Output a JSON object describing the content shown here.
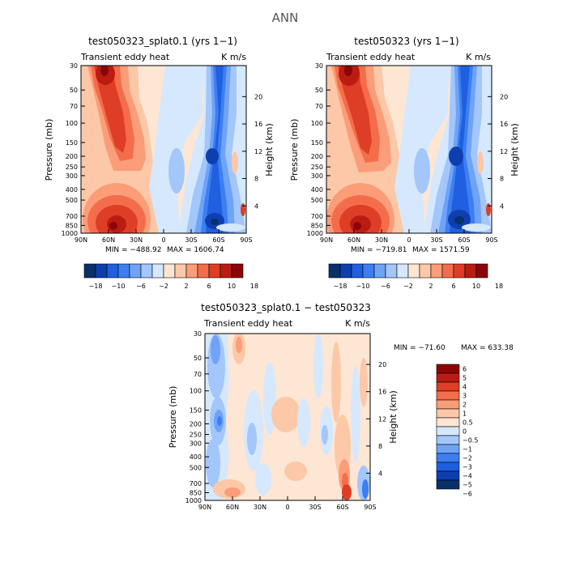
{
  "figure_title": "ANN",
  "colorbar_colors": [
    "#08306b",
    "#0d3fb0",
    "#1f5fe0",
    "#3d7ff2",
    "#6ea3f7",
    "#a3c6fb",
    "#d6e8fd",
    "#fde6d4",
    "#fcc8a7",
    "#fb9d78",
    "#f46d4b",
    "#df3e26",
    "#bb1c12",
    "#8b0508"
  ],
  "chart_data": [
    {
      "type": "heatmap",
      "title": "test050323_splat0.1 (yrs 1−1)",
      "variable": "Transient eddy heat",
      "units": "K m/s",
      "xlabel": "",
      "ylabel": "Pressure (mb)",
      "y2label": "Height (km)",
      "x_ticks": [
        "90N",
        "60N",
        "30N",
        "0",
        "30S",
        "60S",
        "90S"
      ],
      "y_ticks": [
        "30",
        "50",
        "70",
        "100",
        "150",
        "200",
        "250",
        "300",
        "400",
        "500",
        "700",
        "850",
        "1000"
      ],
      "y2_ticks": [
        "20",
        "16",
        "12",
        "8",
        "4"
      ],
      "min_label": "MIN = −488.92",
      "max_label": "MAX = 1606.74",
      "colorbar_labels": [
        "−18",
        "−10",
        "−6",
        "−2",
        "2",
        "6",
        "10",
        "18"
      ],
      "colorbar_ticks": [
        "−14",
        "−2",
        "14"
      ]
    },
    {
      "type": "heatmap",
      "title": "test050323 (yrs 1−1)",
      "variable": "Transient eddy heat",
      "units": "K m/s",
      "xlabel": "",
      "ylabel": "Pressure (mb)",
      "y2label": "Height (km)",
      "x_ticks": [
        "90N",
        "60N",
        "30N",
        "0",
        "30S",
        "60S",
        "90S"
      ],
      "y_ticks": [
        "30",
        "50",
        "70",
        "100",
        "150",
        "200",
        "250",
        "300",
        "400",
        "500",
        "700",
        "850",
        "1000"
      ],
      "y2_ticks": [
        "20",
        "16",
        "12",
        "8",
        "4"
      ],
      "min_label": "MIN = −719.81",
      "max_label": "MAX = 1571.59",
      "colorbar_labels": [
        "−18",
        "−10",
        "−6",
        "−2",
        "2",
        "6",
        "10",
        "18"
      ]
    },
    {
      "type": "heatmap",
      "title": "test050323_splat0.1 − test050323",
      "variable": "Transient eddy heat",
      "units": "K m/s",
      "xlabel": "",
      "ylabel": "Pressure (mb)",
      "y2label": "Height (km)",
      "x_ticks": [
        "90N",
        "60N",
        "30N",
        "0",
        "30S",
        "60S",
        "90S"
      ],
      "y_ticks": [
        "30",
        "50",
        "70",
        "100",
        "150",
        "200",
        "250",
        "300",
        "400",
        "500",
        "700",
        "850",
        "1000"
      ],
      "y2_ticks": [
        "20",
        "16",
        "12",
        "8",
        "4"
      ],
      "min_label": "MIN = −71.60",
      "max_label": "MAX = 633.38",
      "colorbar_labels": [
        "6",
        "5",
        "4",
        "3",
        "2",
        "1",
        "0.5",
        "0",
        "−0.5",
        "−1",
        "−2",
        "−3",
        "−4",
        "−5",
        "−6"
      ]
    }
  ]
}
